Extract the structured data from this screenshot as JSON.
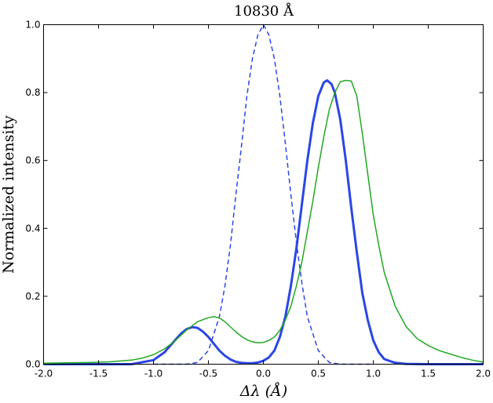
{
  "chart_data": {
    "type": "line",
    "title": "10830 Å",
    "xlabel": "Δλ (Å)",
    "ylabel": "Normalized intensity",
    "xlim": [
      -2.0,
      2.0
    ],
    "ylim": [
      0.0,
      1.0
    ],
    "grid": false,
    "legend": "none",
    "x_ticks": [
      -2.0,
      -1.5,
      -1.0,
      -0.5,
      0.0,
      0.5,
      1.0,
      1.5,
      2.0
    ],
    "x_tick_labels": [
      "-2.0",
      "-1.5",
      "-1.0",
      "-0.5",
      "0.0",
      "0.5",
      "1.0",
      "1.5",
      "2.0"
    ],
    "y_ticks": [
      0.0,
      0.2,
      0.4,
      0.6,
      0.8,
      1.0
    ],
    "y_tick_labels": [
      "0.0",
      "0.2",
      "0.4",
      "0.6",
      "0.8",
      "1.0"
    ],
    "series": [
      {
        "style": "dashed",
        "color": "#2b46e6",
        "x": [
          -1.0,
          -0.9,
          -0.8,
          -0.7,
          -0.6,
          -0.5,
          -0.4,
          -0.35,
          -0.3,
          -0.25,
          -0.2,
          -0.15,
          -0.1,
          -0.05,
          0.0,
          0.05,
          0.1,
          0.15,
          0.2,
          0.25,
          0.3,
          0.35,
          0.4,
          0.5,
          0.6,
          0.7,
          0.8,
          1.0
        ],
        "y": [
          0.0,
          0.0,
          0.0,
          0.0,
          0.005,
          0.04,
          0.14,
          0.23,
          0.35,
          0.5,
          0.64,
          0.79,
          0.9,
          0.97,
          1.0,
          0.97,
          0.9,
          0.79,
          0.65,
          0.5,
          0.36,
          0.24,
          0.14,
          0.04,
          0.005,
          0.0,
          0.0,
          0.0
        ]
      },
      {
        "style": "solid-thick",
        "color": "#2b46e6",
        "x": [
          -2.0,
          -1.5,
          -1.2,
          -1.0,
          -0.9,
          -0.8,
          -0.75,
          -0.7,
          -0.65,
          -0.6,
          -0.55,
          -0.5,
          -0.45,
          -0.4,
          -0.35,
          -0.3,
          -0.25,
          -0.2,
          -0.15,
          -0.1,
          -0.05,
          0.0,
          0.05,
          0.1,
          0.15,
          0.2,
          0.25,
          0.3,
          0.35,
          0.4,
          0.45,
          0.5,
          0.55,
          0.58,
          0.62,
          0.65,
          0.7,
          0.75,
          0.8,
          0.85,
          0.9,
          0.95,
          1.0,
          1.05,
          1.1,
          1.2,
          1.3,
          1.5,
          2.0
        ],
        "y": [
          0.0,
          0.0,
          0.0,
          0.012,
          0.035,
          0.072,
          0.09,
          0.103,
          0.109,
          0.107,
          0.096,
          0.08,
          0.06,
          0.04,
          0.025,
          0.014,
          0.007,
          0.004,
          0.003,
          0.003,
          0.005,
          0.01,
          0.02,
          0.04,
          0.08,
          0.14,
          0.23,
          0.34,
          0.47,
          0.6,
          0.71,
          0.79,
          0.83,
          0.836,
          0.825,
          0.8,
          0.72,
          0.6,
          0.46,
          0.33,
          0.21,
          0.13,
          0.07,
          0.035,
          0.015,
          0.004,
          0.001,
          0.0,
          0.0
        ]
      },
      {
        "style": "solid",
        "color": "#22a822",
        "x": [
          -2.0,
          -1.8,
          -1.6,
          -1.4,
          -1.2,
          -1.1,
          -1.0,
          -0.9,
          -0.8,
          -0.7,
          -0.6,
          -0.5,
          -0.45,
          -0.4,
          -0.35,
          -0.3,
          -0.25,
          -0.2,
          -0.15,
          -0.1,
          -0.05,
          0.0,
          0.05,
          0.1,
          0.15,
          0.2,
          0.25,
          0.3,
          0.35,
          0.4,
          0.45,
          0.5,
          0.55,
          0.6,
          0.65,
          0.7,
          0.75,
          0.8,
          0.85,
          0.9,
          0.95,
          1.0,
          1.05,
          1.1,
          1.2,
          1.3,
          1.4,
          1.5,
          1.6,
          1.7,
          1.8,
          1.9,
          2.0
        ],
        "y": [
          0.003,
          0.004,
          0.005,
          0.007,
          0.012,
          0.018,
          0.028,
          0.045,
          0.07,
          0.1,
          0.125,
          0.137,
          0.14,
          0.136,
          0.125,
          0.11,
          0.095,
          0.082,
          0.072,
          0.066,
          0.063,
          0.064,
          0.07,
          0.08,
          0.1,
          0.13,
          0.17,
          0.23,
          0.3,
          0.39,
          0.48,
          0.58,
          0.67,
          0.75,
          0.8,
          0.832,
          0.836,
          0.834,
          0.79,
          0.68,
          0.56,
          0.44,
          0.35,
          0.27,
          0.17,
          0.11,
          0.075,
          0.055,
          0.04,
          0.03,
          0.02,
          0.012,
          0.006
        ]
      }
    ]
  }
}
